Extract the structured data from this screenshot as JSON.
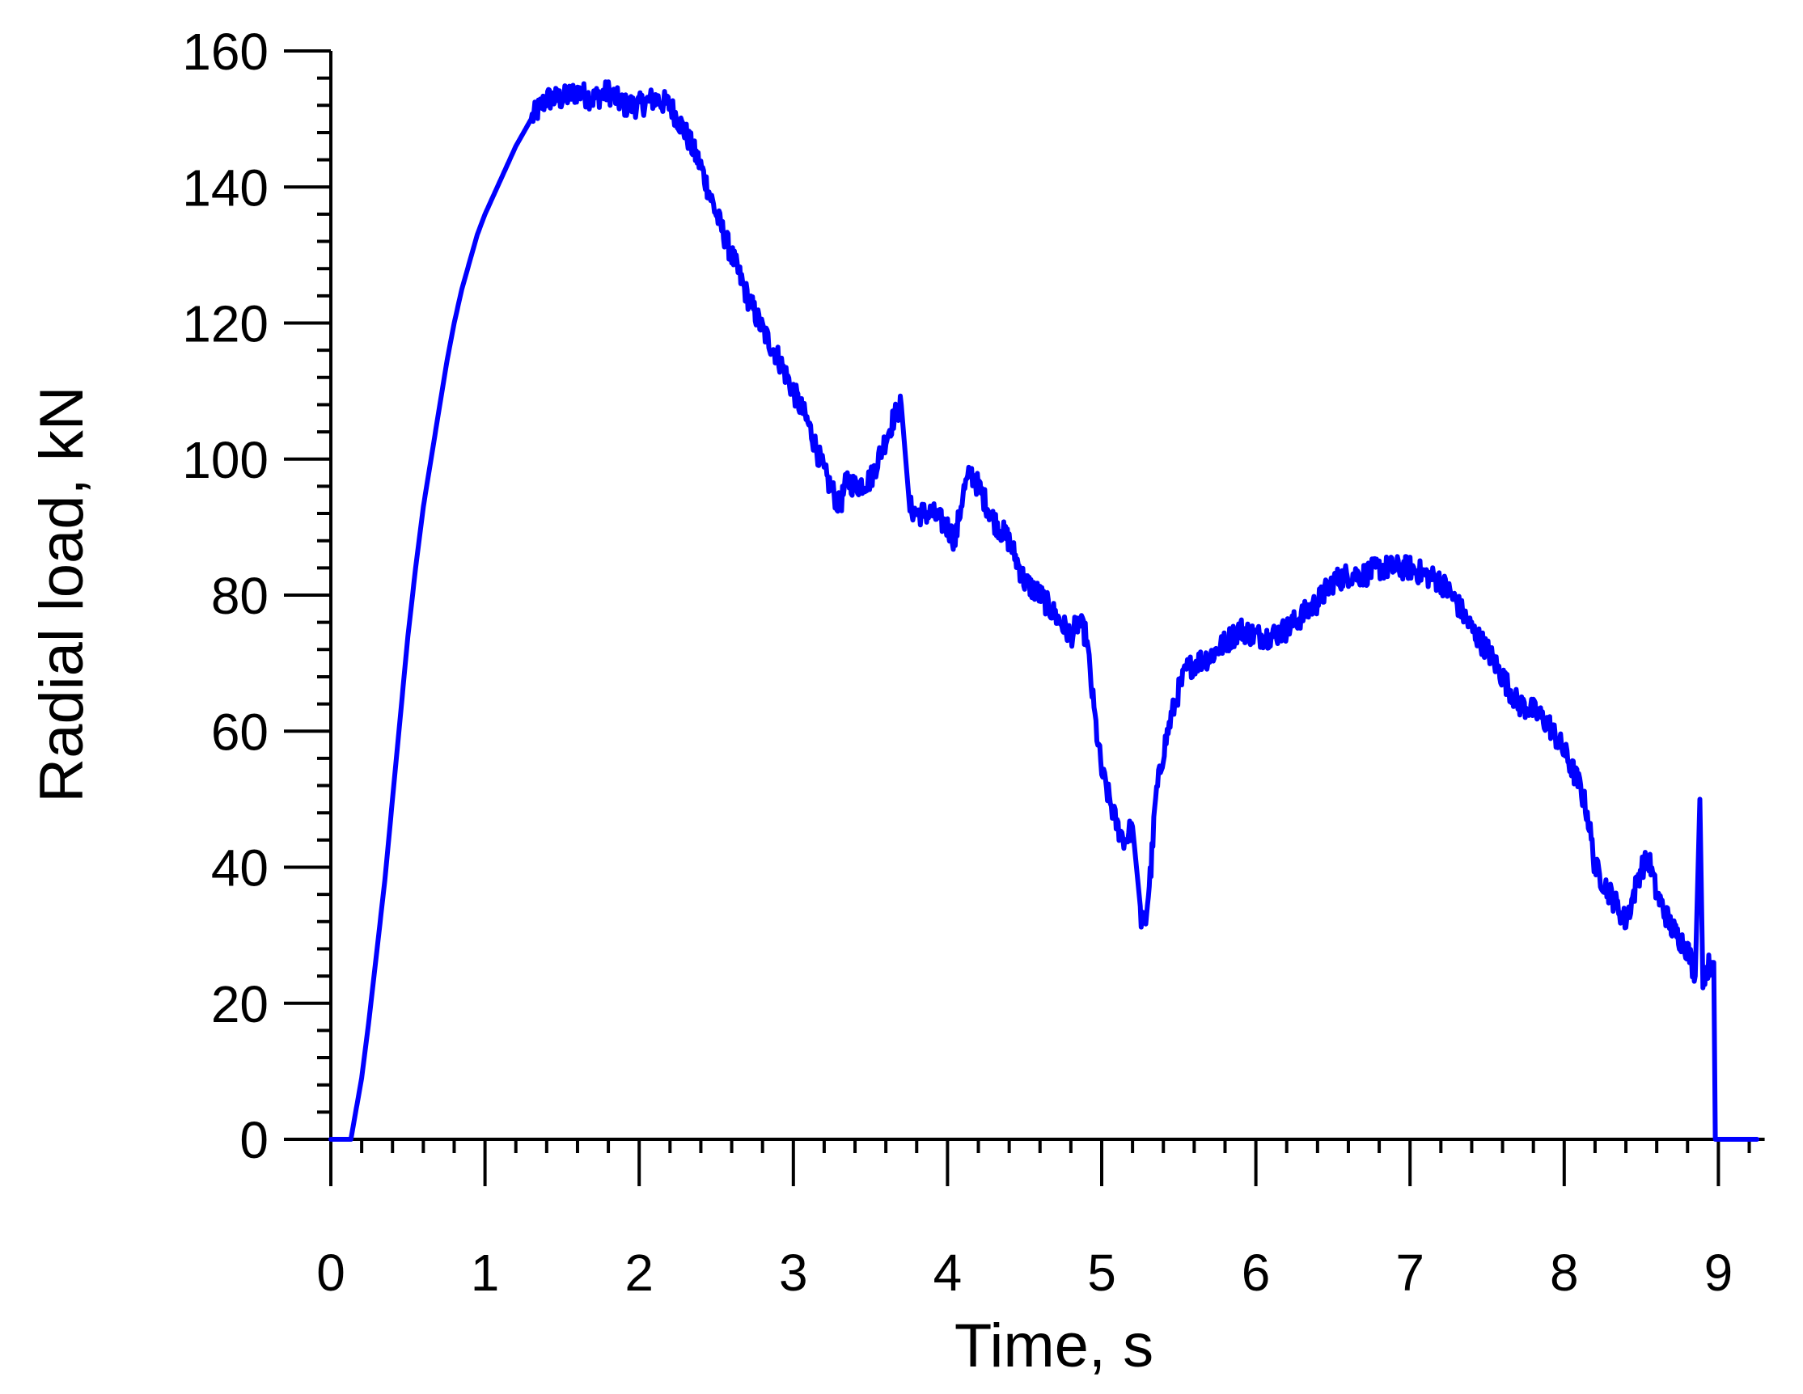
{
  "chart_data": {
    "type": "line",
    "title": "",
    "xlabel": "Time, s",
    "ylabel": "Radial load, kN",
    "xlim": [
      0,
      9.3
    ],
    "ylim": [
      0,
      160
    ],
    "x_ticks": [
      0,
      1,
      2,
      3,
      4,
      5,
      6,
      7,
      8,
      9
    ],
    "x_tick_labels": [
      "0",
      "1",
      "2",
      "3",
      "4",
      "5",
      "6",
      "7",
      "8",
      "9"
    ],
    "x_minor_step": 0.2,
    "y_ticks": [
      0,
      20,
      40,
      60,
      80,
      100,
      120,
      140,
      160
    ],
    "y_tick_labels": [
      "0",
      "20",
      "40",
      "60",
      "80",
      "100",
      "120",
      "140",
      "160"
    ],
    "y_minor_step": 4,
    "grid": false,
    "legend": "none",
    "series": [
      {
        "color": "#0000ff",
        "points": [
          [
            0.0,
            0
          ],
          [
            0.13,
            0
          ],
          [
            0.2,
            9
          ],
          [
            0.25,
            18
          ],
          [
            0.3,
            28
          ],
          [
            0.35,
            38
          ],
          [
            0.4,
            50
          ],
          [
            0.45,
            62
          ],
          [
            0.5,
            74
          ],
          [
            0.55,
            84
          ],
          [
            0.6,
            93
          ],
          [
            0.65,
            100
          ],
          [
            0.7,
            107
          ],
          [
            0.75,
            114
          ],
          [
            0.8,
            120
          ],
          [
            0.85,
            125
          ],
          [
            0.9,
            129
          ],
          [
            0.95,
            133
          ],
          [
            1.0,
            136
          ],
          [
            1.1,
            141
          ],
          [
            1.2,
            146
          ],
          [
            1.3,
            150
          ],
          [
            1.4,
            153
          ],
          [
            1.5,
            153
          ],
          [
            1.6,
            154
          ],
          [
            1.7,
            153
          ],
          [
            1.8,
            154
          ],
          [
            1.9,
            152
          ],
          [
            2.0,
            152
          ],
          [
            2.1,
            153
          ],
          [
            2.2,
            152
          ],
          [
            2.3,
            148
          ],
          [
            2.4,
            143
          ],
          [
            2.5,
            136
          ],
          [
            2.6,
            130
          ],
          [
            2.7,
            124
          ],
          [
            2.8,
            119
          ],
          [
            2.9,
            115
          ],
          [
            3.0,
            110
          ],
          [
            3.1,
            105
          ],
          [
            3.2,
            98
          ],
          [
            3.3,
            93
          ],
          [
            3.35,
            97
          ],
          [
            3.4,
            96
          ],
          [
            3.5,
            97
          ],
          [
            3.6,
            103
          ],
          [
            3.65,
            106
          ],
          [
            3.7,
            108
          ],
          [
            3.75,
            93
          ],
          [
            3.8,
            92
          ],
          [
            3.9,
            92
          ],
          [
            4.0,
            90
          ],
          [
            4.05,
            88
          ],
          [
            4.1,
            95
          ],
          [
            4.15,
            98
          ],
          [
            4.2,
            96
          ],
          [
            4.3,
            91
          ],
          [
            4.4,
            88
          ],
          [
            4.5,
            82
          ],
          [
            4.6,
            80
          ],
          [
            4.7,
            77
          ],
          [
            4.8,
            74
          ],
          [
            4.85,
            76
          ],
          [
            4.9,
            74
          ],
          [
            4.95,
            63
          ],
          [
            5.0,
            54
          ],
          [
            5.05,
            50
          ],
          [
            5.1,
            46
          ],
          [
            5.15,
            44
          ],
          [
            5.2,
            46
          ],
          [
            5.25,
            33
          ],
          [
            5.28,
            31
          ],
          [
            5.32,
            40
          ],
          [
            5.35,
            50
          ],
          [
            5.4,
            57
          ],
          [
            5.45,
            62
          ],
          [
            5.5,
            66
          ],
          [
            5.55,
            69
          ],
          [
            5.6,
            70
          ],
          [
            5.7,
            71
          ],
          [
            5.8,
            73
          ],
          [
            5.9,
            75
          ],
          [
            6.0,
            74
          ],
          [
            6.1,
            74
          ],
          [
            6.2,
            75
          ],
          [
            6.3,
            77
          ],
          [
            6.4,
            79
          ],
          [
            6.5,
            82
          ],
          [
            6.6,
            83
          ],
          [
            6.7,
            83
          ],
          [
            6.8,
            84
          ],
          [
            6.9,
            84
          ],
          [
            7.0,
            84
          ],
          [
            7.1,
            83
          ],
          [
            7.2,
            82
          ],
          [
            7.3,
            79
          ],
          [
            7.4,
            75
          ],
          [
            7.5,
            72
          ],
          [
            7.6,
            68
          ],
          [
            7.7,
            64
          ],
          [
            7.8,
            63
          ],
          [
            7.9,
            61
          ],
          [
            8.0,
            57
          ],
          [
            8.1,
            52
          ],
          [
            8.15,
            48
          ],
          [
            8.2,
            40
          ],
          [
            8.3,
            36
          ],
          [
            8.4,
            32
          ],
          [
            8.45,
            36
          ],
          [
            8.5,
            40
          ],
          [
            8.55,
            41
          ],
          [
            8.6,
            36
          ],
          [
            8.7,
            31
          ],
          [
            8.8,
            28
          ],
          [
            8.85,
            24
          ],
          [
            8.88,
            50
          ],
          [
            8.9,
            24
          ],
          [
            8.95,
            26
          ],
          [
            8.97,
            26
          ],
          [
            8.98,
            0
          ],
          [
            9.25,
            0
          ]
        ]
      }
    ]
  }
}
